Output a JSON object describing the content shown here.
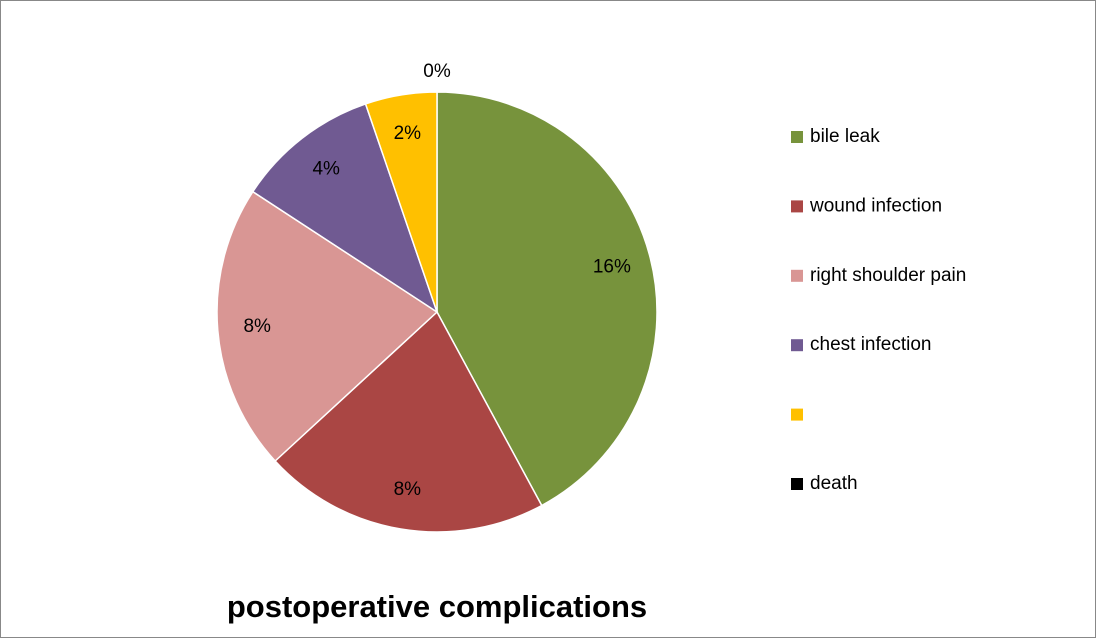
{
  "chart_data": {
    "type": "pie",
    "title": "postoperative complications",
    "categories": [
      "bile leak",
      "wound infection",
      "right shoulder pain",
      "chest infection",
      null,
      "death"
    ],
    "values": [
      16,
      8,
      8,
      4,
      2,
      0
    ],
    "value_labels": [
      "16%",
      "8%",
      "8%",
      "4%",
      "2%",
      "0%"
    ],
    "colors": [
      "#77933c",
      "#aa4644",
      "#d99694",
      "#705a92",
      "#ffc000",
      "#000000"
    ],
    "legend": "right"
  }
}
